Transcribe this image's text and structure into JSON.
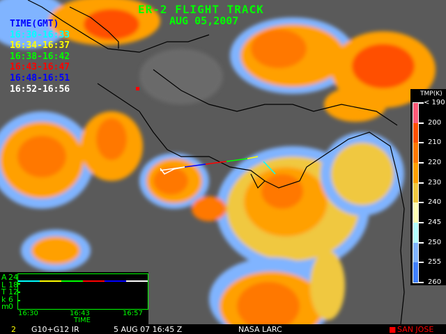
{
  "header": {
    "title": "ER-2 FLIGHT TRACK",
    "date": "AUG 05,2007"
  },
  "legend": {
    "heading": "TIME(GMT)",
    "heading_color": "#0000ff",
    "items": [
      {
        "label": "16:30-16:33",
        "color": "#00ffff"
      },
      {
        "label": "16:34-16:37",
        "color": "#ffff00"
      },
      {
        "label": "16:38-16:42",
        "color": "#00ff00"
      },
      {
        "label": "16:43-16:47",
        "color": "#ff0000"
      },
      {
        "label": "16:48-16:51",
        "color": "#0000ff"
      },
      {
        "label": "16:52-16:56",
        "color": "#ffffff"
      }
    ]
  },
  "colorbar": {
    "title": "TMP(K)",
    "labels": [
      "< 190",
      "200",
      "210",
      "220",
      "230",
      "240",
      "245",
      "250",
      "255",
      "260"
    ],
    "colors": [
      "#ff5a78",
      "#ff5000",
      "#ff7800",
      "#ffa000",
      "#f0c840",
      "#ffffb4",
      "#b4ffff",
      "#80b4ff",
      "#4080ff"
    ]
  },
  "altitude_plot": {
    "ylabel_letters": [
      "A",
      "L",
      "T",
      "k",
      "m"
    ],
    "yticks": [
      "24",
      "18",
      "12",
      "6",
      "0"
    ],
    "xticks": [
      "16:30",
      "16:43",
      "16:57"
    ],
    "xlabel": "TIME",
    "altitude_km": 20
  },
  "footer": {
    "frame": "2",
    "sensor": "G10+G12 IR",
    "datetime": "5 AUG 07 16:45 Z",
    "source": "NASA LARC",
    "marker_label": "SAN JOSE",
    "marker_color": "#ff0000"
  }
}
